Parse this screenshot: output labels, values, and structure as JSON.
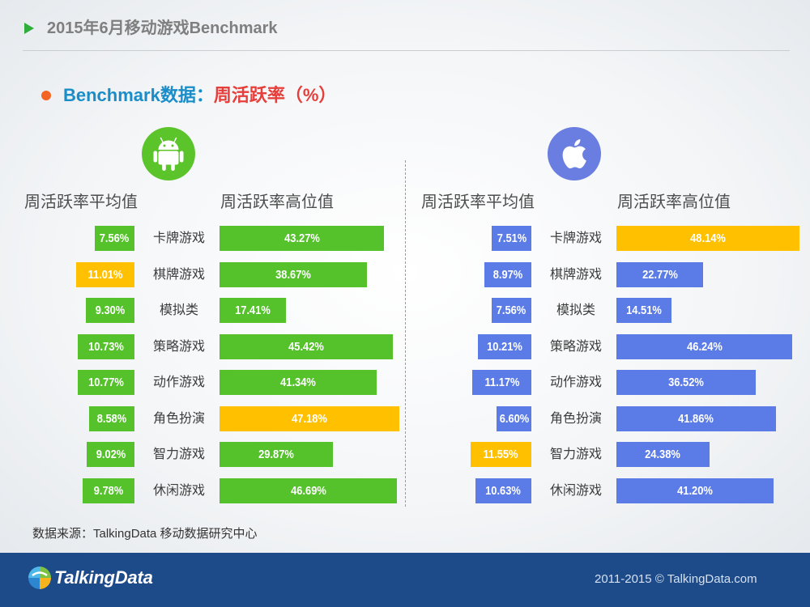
{
  "header": {
    "title": "2015年6月移动游戏Benchmark",
    "bullet_icon": "play-triangle-icon",
    "bullet_color": "#2fae3c"
  },
  "subtitle": {
    "prefix": "Benchmark数据：",
    "metric": "周活跃率（%）",
    "bullet_icon": "dot-icon",
    "bullet_color": "#f26522",
    "prefix_color": "#1a8dc8",
    "metric_color": "#e63e3a"
  },
  "chart_data": [
    {
      "type": "bar",
      "orientation": "horizontal",
      "platform_icon": "android-icon",
      "icon_color": "#5cc42b",
      "bar_color": "#55c22c",
      "highlight_color": "#ffc000",
      "categories": [
        "卡牌游戏",
        "棋牌游戏",
        "模拟类",
        "策略游戏",
        "动作游戏",
        "角色扮演",
        "智力游戏",
        "休闲游戏"
      ],
      "series": [
        {
          "name": "周活跃率平均值",
          "values": [
            7.56,
            11.01,
            9.3,
            10.73,
            10.77,
            8.58,
            9.02,
            9.78
          ],
          "labels": [
            "7.56%",
            "11.01%",
            "9.30%",
            "10.73%",
            "10.77%",
            "8.58%",
            "9.02%",
            "9.78%"
          ],
          "highlight_index": 1
        },
        {
          "name": "周活跃率高位值",
          "values": [
            43.27,
            38.67,
            17.41,
            45.42,
            41.34,
            47.18,
            29.87,
            46.69
          ],
          "labels": [
            "43.27%",
            "38.67%",
            "17.41%",
            "45.42%",
            "41.34%",
            "47.18%",
            "29.87%",
            "46.69%"
          ],
          "highlight_index": 5
        }
      ]
    },
    {
      "type": "bar",
      "orientation": "horizontal",
      "platform_icon": "apple-icon",
      "icon_color": "#6a7de0",
      "bar_color": "#5b7be6",
      "highlight_color": "#ffc000",
      "categories": [
        "卡牌游戏",
        "棋牌游戏",
        "模拟类",
        "策略游戏",
        "动作游戏",
        "角色扮演",
        "智力游戏",
        "休闲游戏"
      ],
      "series": [
        {
          "name": "周活跃率平均值",
          "values": [
            7.51,
            8.97,
            7.56,
            10.21,
            11.17,
            6.6,
            11.55,
            10.63
          ],
          "labels": [
            "7.51%",
            "8.97%",
            "7.56%",
            "10.21%",
            "11.17%",
            "6.60%",
            "11.55%",
            "10.63%"
          ],
          "highlight_index": 6
        },
        {
          "name": "周活跃率高位值",
          "values": [
            48.14,
            22.77,
            14.51,
            46.24,
            36.52,
            41.86,
            24.38,
            41.2
          ],
          "labels": [
            "48.14%",
            "22.77%",
            "14.51%",
            "46.24%",
            "36.52%",
            "41.86%",
            "24.38%",
            "41.20%"
          ],
          "highlight_index": 0
        }
      ]
    }
  ],
  "source": {
    "text": "数据来源：TalkingData 移动数据研究中心"
  },
  "footer": {
    "logo_icon": "talkingdata-logo-icon",
    "brand": "TalkingData",
    "copyright": "2011-2015 © TalkingData.com",
    "background": "#1d4a89"
  }
}
